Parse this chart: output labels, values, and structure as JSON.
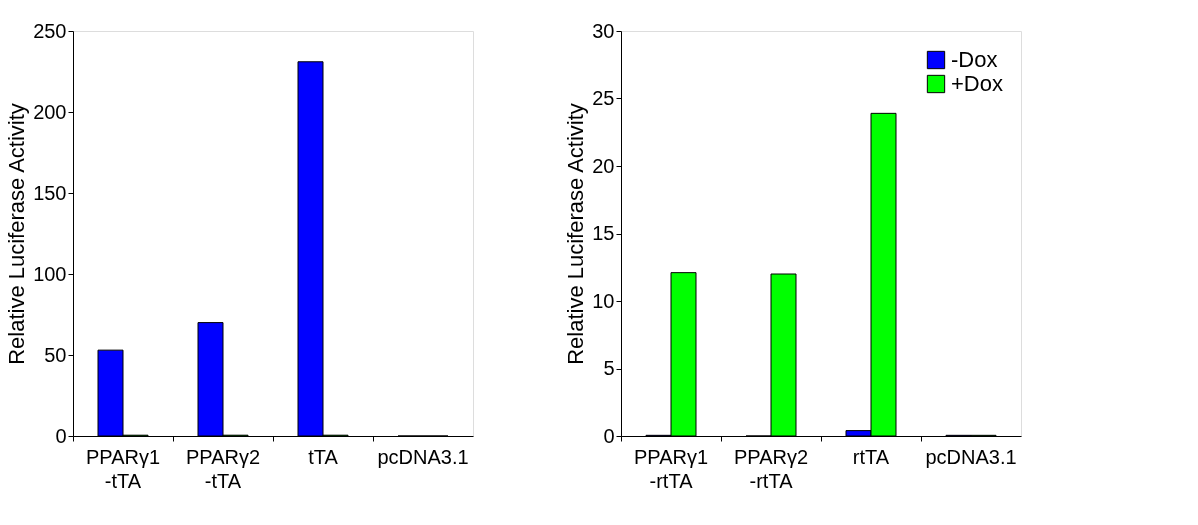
{
  "chart_data": [
    {
      "type": "bar",
      "ylabel": "Relative Luciferase Activity",
      "categories": [
        "PPARγ1\n-tTA",
        "PPARγ2\n-tTA",
        "tTA",
        "pcDNA3.1"
      ],
      "ylim": [
        0,
        250
      ],
      "yticks": [
        0,
        50,
        100,
        150,
        200,
        250
      ],
      "grid": false,
      "legend": false,
      "series": [
        {
          "color": "#0000ff",
          "values": [
            53,
            70,
            231,
            0
          ]
        },
        {
          "color": "#00ff00",
          "values": [
            0.5,
            0.5,
            0.5,
            0
          ]
        }
      ]
    },
    {
      "type": "bar",
      "ylabel": "Relative Luciferase Activity",
      "categories": [
        "PPARγ1\n-rtTA",
        "PPARγ2\n-rtTA",
        "rtTA",
        "pcDNA3.1"
      ],
      "ylim": [
        0,
        30
      ],
      "yticks": [
        0,
        5,
        10,
        15,
        20,
        25,
        30
      ],
      "grid": false,
      "legend": "top right",
      "series": [
        {
          "name": "-Dox",
          "color": "#0000ff",
          "values": [
            0.05,
            0,
            0.4,
            0.05
          ]
        },
        {
          "name": "+Dox",
          "color": "#00ff00",
          "values": [
            12.1,
            12,
            23.9,
            0.05
          ]
        }
      ]
    }
  ]
}
